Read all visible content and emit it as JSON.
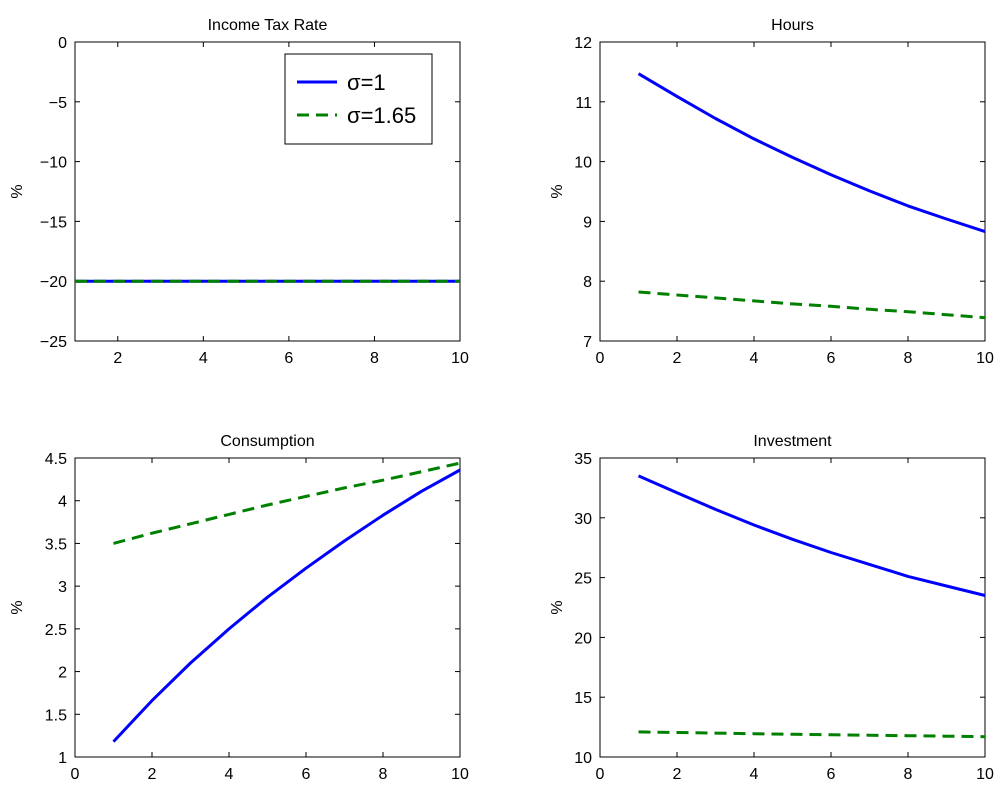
{
  "figure": {
    "series_styles": [
      {
        "color": "#0000ff",
        "dash": "solid"
      },
      {
        "color": "#008000",
        "dash": "dashed"
      }
    ]
  },
  "legend": {
    "placement": "top-right",
    "entries": [
      "σ=1",
      "σ=1.65"
    ]
  },
  "chart_data": [
    {
      "type": "line",
      "title": "Income Tax Rate",
      "xlabel": "",
      "ylabel": "%",
      "xlim": [
        1,
        10
      ],
      "ylim": [
        -25,
        0
      ],
      "xticks": [
        2,
        4,
        6,
        8,
        10
      ],
      "yticks": [
        -25,
        -20,
        -15,
        -10,
        -5,
        0
      ],
      "xtick_labels": [
        "2",
        "4",
        "6",
        "8",
        "10"
      ],
      "ytick_labels": [
        "−25",
        "−20",
        "−15",
        "−10",
        "−5",
        "0"
      ],
      "x": [
        1,
        2,
        3,
        4,
        5,
        6,
        7,
        8,
        9,
        10
      ],
      "series": [
        {
          "name": "σ=1",
          "values": [
            -20,
            -20,
            -20,
            -20,
            -20,
            -20,
            -20,
            -20,
            -20,
            -20
          ]
        },
        {
          "name": "σ=1.65",
          "values": [
            -20,
            -20,
            -20,
            -20,
            -20,
            -20,
            -20,
            -20,
            -20,
            -20
          ]
        }
      ]
    },
    {
      "type": "line",
      "title": "Hours",
      "xlabel": "",
      "ylabel": "%",
      "xlim": [
        0,
        10
      ],
      "ylim": [
        7,
        12
      ],
      "xticks": [
        0,
        2,
        4,
        6,
        8,
        10
      ],
      "yticks": [
        7,
        8,
        9,
        10,
        11,
        12
      ],
      "xtick_labels": [
        "0",
        "2",
        "4",
        "6",
        "8",
        "10"
      ],
      "ytick_labels": [
        "7",
        "8",
        "9",
        "10",
        "11",
        "12"
      ],
      "x": [
        1,
        2,
        3,
        4,
        5,
        6,
        7,
        8,
        9,
        10
      ],
      "series": [
        {
          "name": "σ=1",
          "values": [
            11.47,
            11.09,
            10.72,
            10.38,
            10.07,
            9.78,
            9.51,
            9.26,
            9.04,
            8.83
          ]
        },
        {
          "name": "σ=1.65",
          "values": [
            7.82,
            7.77,
            7.72,
            7.67,
            7.62,
            7.58,
            7.53,
            7.49,
            7.44,
            7.39
          ]
        }
      ]
    },
    {
      "type": "line",
      "title": "Consumption",
      "xlabel": "",
      "ylabel": "%",
      "xlim": [
        0,
        10
      ],
      "ylim": [
        1,
        4.5
      ],
      "xticks": [
        0,
        2,
        4,
        6,
        8,
        10
      ],
      "yticks": [
        1,
        1.5,
        2,
        2.5,
        3,
        3.5,
        4,
        4.5
      ],
      "xtick_labels": [
        "0",
        "2",
        "4",
        "6",
        "8",
        "10"
      ],
      "ytick_labels": [
        "1",
        "1.5",
        "2",
        "2.5",
        "3",
        "3.5",
        "4",
        "4.5"
      ],
      "x": [
        1,
        2,
        3,
        4,
        5,
        6,
        7,
        8,
        9,
        10
      ],
      "series": [
        {
          "name": "σ=1",
          "values": [
            1.18,
            1.66,
            2.1,
            2.5,
            2.87,
            3.21,
            3.53,
            3.83,
            4.11,
            4.36
          ]
        },
        {
          "name": "σ=1.65",
          "values": [
            3.5,
            3.62,
            3.73,
            3.84,
            3.95,
            4.05,
            4.15,
            4.24,
            4.34,
            4.44
          ]
        }
      ]
    },
    {
      "type": "line",
      "title": "Investment",
      "xlabel": "",
      "ylabel": "%",
      "xlim": [
        0,
        10
      ],
      "ylim": [
        10,
        35
      ],
      "xticks": [
        0,
        2,
        4,
        6,
        8,
        10
      ],
      "yticks": [
        10,
        15,
        20,
        25,
        30,
        35
      ],
      "xtick_labels": [
        "0",
        "2",
        "4",
        "6",
        "8",
        "10"
      ],
      "ytick_labels": [
        "10",
        "15",
        "20",
        "25",
        "30",
        "35"
      ],
      "x": [
        1,
        2,
        3,
        4,
        5,
        6,
        7,
        8,
        9,
        10
      ],
      "series": [
        {
          "name": "σ=1",
          "values": [
            33.5,
            32.1,
            30.7,
            29.4,
            28.2,
            27.1,
            26.1,
            25.1,
            24.3,
            23.5
          ]
        },
        {
          "name": "σ=1.65",
          "values": [
            12.1,
            12.05,
            12.0,
            11.95,
            11.9,
            11.86,
            11.82,
            11.78,
            11.74,
            11.7
          ]
        }
      ]
    }
  ]
}
